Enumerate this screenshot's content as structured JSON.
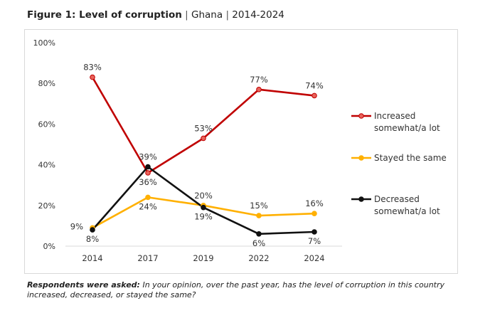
{
  "figure": {
    "title": "Figure 1: Level of corruption",
    "separator": "|",
    "country": "Ghana",
    "years": "2014-2024"
  },
  "footnote": {
    "label": "Respondents were asked:",
    "text": " In your opinion, over the past year, has the level of corruption in this country increased, decreased, or stayed the same?"
  },
  "chart_data": {
    "type": "line",
    "title": "",
    "xlabel": "",
    "ylabel": "",
    "categories": [
      "2014",
      "2017",
      "2019",
      "2022",
      "2024"
    ],
    "ylim": [
      0,
      100
    ],
    "yticks": [
      "0%",
      "20%",
      "40%",
      "60%",
      "80%",
      "100%"
    ],
    "grid": false,
    "legend_position": "right",
    "series": [
      {
        "name": "Increased somewhat/a lot",
        "legend_lines": [
          "Increased",
          "somewhat/a lot"
        ],
        "color": "#c00000",
        "marker_fill": "#e8625a",
        "values": [
          83,
          36,
          53,
          77,
          74
        ],
        "labels": [
          "83%",
          "36%",
          "53%",
          "77%",
          "74%"
        ]
      },
      {
        "name": "Stayed the same",
        "legend_lines": [
          "Stayed the same"
        ],
        "color": "#ffb000",
        "marker_fill": "#ffb000",
        "values": [
          9,
          24,
          20,
          15,
          16
        ],
        "labels": [
          "9%",
          "24%",
          "20%",
          "15%",
          "16%"
        ]
      },
      {
        "name": "Decreased somewhat/a lot",
        "legend_lines": [
          "Decreased",
          "somewhat/a lot"
        ],
        "color": "#111111",
        "marker_fill": "#111111",
        "values": [
          8,
          39,
          19,
          6,
          7
        ],
        "labels": [
          "8%",
          "39%",
          "19%",
          "6%",
          "7%"
        ]
      }
    ]
  }
}
